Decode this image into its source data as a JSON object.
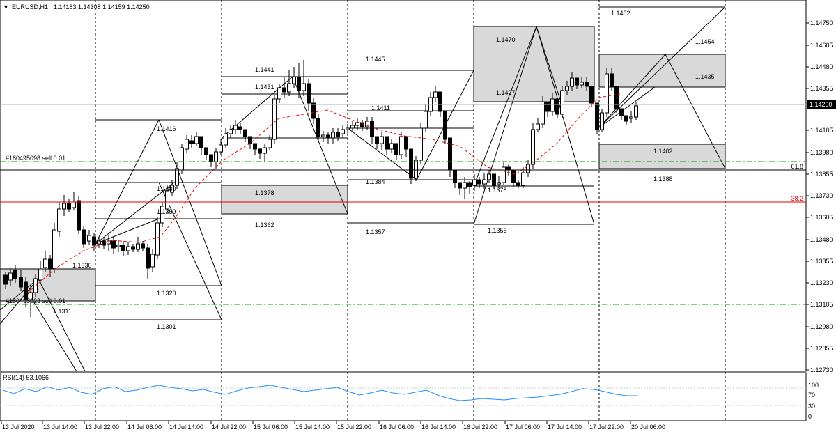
{
  "header": {
    "collapse_glyph": "▼",
    "symbol": "EURUSD,H1",
    "ohlc": "1.14183 1.14308 1.14159 1.14250"
  },
  "price_axis": {
    "labels": [
      "1.14750",
      "1.14605",
      "1.14480",
      "1.14355",
      "1.14105",
      "1.13980",
      "1.13855",
      "1.13730",
      "1.13605",
      "1.13480",
      "1.13355",
      "1.13230",
      "1.13105",
      "1.12980",
      "1.12855",
      "1.12730"
    ],
    "current_price": "1.14250",
    "fib_618": "61.8",
    "fib_382": "38.2"
  },
  "time_axis": {
    "labels": [
      "13 Jul 2020",
      "13 Jul 14:00",
      "13 Jul 22:00",
      "14 Jul 06:00",
      "14 Jul 14:00",
      "14 Jul 22:00",
      "15 Jul 06:00",
      "15 Jul 14:00",
      "15 Jul 22:00",
      "16 Jul 06:00",
      "16 Jul 14:00",
      "16 Jul 22:00",
      "17 Jul 06:00",
      "17 Jul 14:00",
      "17 Jul 22:00",
      "20 Jul 06:00"
    ]
  },
  "annotations": {
    "order_sell_1": "#180495098 sell 0.01",
    "order_sell_2": "#180495023 sell 0.01",
    "levels": [
      "1.1482",
      "1.1470",
      "1.1454",
      "1.1445",
      "1.1441",
      "1.1435",
      "1.1431",
      "1.1427",
      "1.1416",
      "1.1411",
      "1.1402",
      "1.1388",
      "1.1384",
      "1.1380",
      "1.1378",
      "1.1378",
      "1.1362",
      "1.1359",
      "1.1357",
      "1.1356",
      "1.1330",
      "1.1320",
      "1.1311",
      "1.1301"
    ]
  },
  "rsi": {
    "label": "RSI(14) 53.1066",
    "scale": [
      "100",
      "70",
      "30",
      "0"
    ]
  },
  "colors": {
    "background": "#ffffff",
    "grid": "#c8c8c8",
    "bull_candle": "#ffffff",
    "bear_candle": "#000000",
    "fib_line": "#ff0000",
    "order_line": "#00a000",
    "ma_line": "#ff0000",
    "rsi_line": "#1e90ff",
    "zone_fill": "#d9d9d9",
    "price_tag_bg": "#000000"
  }
}
